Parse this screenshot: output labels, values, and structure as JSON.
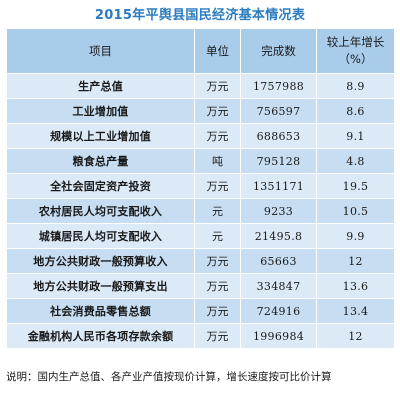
{
  "title": "2015年平舆县国民经济基本情况表",
  "table": {
    "headers": {
      "item": "项目",
      "unit": "单位",
      "value": "完成数",
      "growth": "较上年增长（%）"
    },
    "rows": [
      {
        "item": "生产总值",
        "unit": "万元",
        "value": "1757988",
        "growth": "8.9"
      },
      {
        "item": "工业增加值",
        "unit": "万元",
        "value": "756597",
        "growth": "8.6"
      },
      {
        "item": "规模以上工业增加值",
        "unit": "万元",
        "value": "688653",
        "growth": "9.1"
      },
      {
        "item": "粮食总产量",
        "unit": "吨",
        "value": "795128",
        "growth": "4.8"
      },
      {
        "item": "全社会固定资产投资",
        "unit": "万元",
        "value": "1351171",
        "growth": "19.5"
      },
      {
        "item": "农村居民人均可支配收入",
        "unit": "元",
        "value": "9233",
        "growth": "10.5"
      },
      {
        "item": "城镇居民人均可支配收入",
        "unit": "元",
        "value": "21495.8",
        "growth": "9.9"
      },
      {
        "item": "地方公共财政一般预算收入",
        "unit": "万元",
        "value": "65663",
        "growth": "12"
      },
      {
        "item": "地方公共财政一般预算支出",
        "unit": "万元",
        "value": "334847",
        "growth": "13.6"
      },
      {
        "item": "社会消费品零售总额",
        "unit": "万元",
        "value": "724916",
        "growth": "13.4"
      },
      {
        "item": "金融机构人民币各项存款余额",
        "unit": "万元",
        "value": "1996984",
        "growth": "12"
      }
    ]
  },
  "note": "说明：国内生产总值、各产业产值按现价计算，增长速度按可比价计算",
  "colors": {
    "title": "#2b7cc0",
    "header_bg": "#a9ccea",
    "row_light": "#dceaf7",
    "row_dark": "#c6ddf2"
  }
}
